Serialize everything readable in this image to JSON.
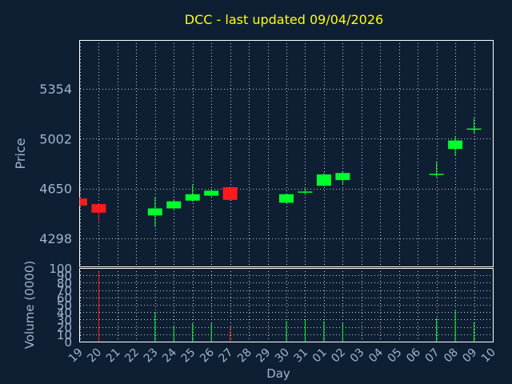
{
  "colors": {
    "background": "#0f1f33",
    "frame": "#ffffff",
    "grid": "#ffffff",
    "text": "#9fb4d0",
    "title": "#ffff00",
    "up": "#00ff2a",
    "down": "#ff1a1a"
  },
  "chart_data": {
    "type": "candlestick",
    "title": "DCC - last updated 09/04/2026",
    "xlabel": "Day",
    "x_ticks": [
      "19",
      "20",
      "21",
      "22",
      "23",
      "24",
      "25",
      "26",
      "27",
      "28",
      "29",
      "30",
      "31",
      "01",
      "02",
      "03",
      "04",
      "05",
      "06",
      "07",
      "08",
      "09",
      "10"
    ],
    "price_panel": {
      "ylabel": "Price",
      "y_ticks": [
        4298,
        4650,
        5002,
        5354
      ],
      "ylim": [
        4100,
        5700
      ],
      "grid": true
    },
    "volume_panel": {
      "ylabel": "Volume (0000)",
      "y_ticks": [
        0,
        10,
        20,
        30,
        40,
        50,
        60,
        70,
        80,
        90,
        100
      ],
      "ylim": [
        0,
        100
      ],
      "grid": true
    },
    "candles": [
      {
        "day": "19",
        "open": 4580,
        "close": 4530,
        "high": 4590,
        "low": 4525,
        "volume": 0
      },
      {
        "day": "20",
        "open": 4540,
        "close": 4480,
        "high": 4545,
        "low": 4420,
        "volume": 95
      },
      {
        "day": "23",
        "open": 4460,
        "close": 4510,
        "high": 4590,
        "low": 4380,
        "volume": 40
      },
      {
        "day": "24",
        "open": 4510,
        "close": 4560,
        "high": 4575,
        "low": 4505,
        "volume": 22
      },
      {
        "day": "25",
        "open": 4565,
        "close": 4610,
        "high": 4680,
        "low": 4555,
        "volume": 25
      },
      {
        "day": "26",
        "open": 4600,
        "close": 4635,
        "high": 4645,
        "low": 4595,
        "volume": 25
      },
      {
        "day": "27",
        "open": 4660,
        "close": 4570,
        "high": 4665,
        "low": 4565,
        "volume": 20
      },
      {
        "day": "30",
        "open": 4550,
        "close": 4610,
        "high": 4615,
        "low": 4545,
        "volume": 28
      },
      {
        "day": "31",
        "open": 4625,
        "close": 4625,
        "high": 4650,
        "low": 4605,
        "volume": 30
      },
      {
        "day": "01",
        "open": 4670,
        "close": 4750,
        "high": 4760,
        "low": 4665,
        "volume": 28
      },
      {
        "day": "02",
        "open": 4710,
        "close": 4760,
        "high": 4775,
        "low": 4680,
        "volume": 25
      },
      {
        "day": "07",
        "open": 4750,
        "close": 4750,
        "high": 4840,
        "low": 4730,
        "volume": 32
      },
      {
        "day": "08",
        "open": 4930,
        "close": 4990,
        "high": 5020,
        "low": 4880,
        "volume": 42
      },
      {
        "day": "09",
        "open": 5070,
        "close": 5070,
        "high": 5150,
        "low": 5040,
        "volume": 26
      }
    ]
  }
}
